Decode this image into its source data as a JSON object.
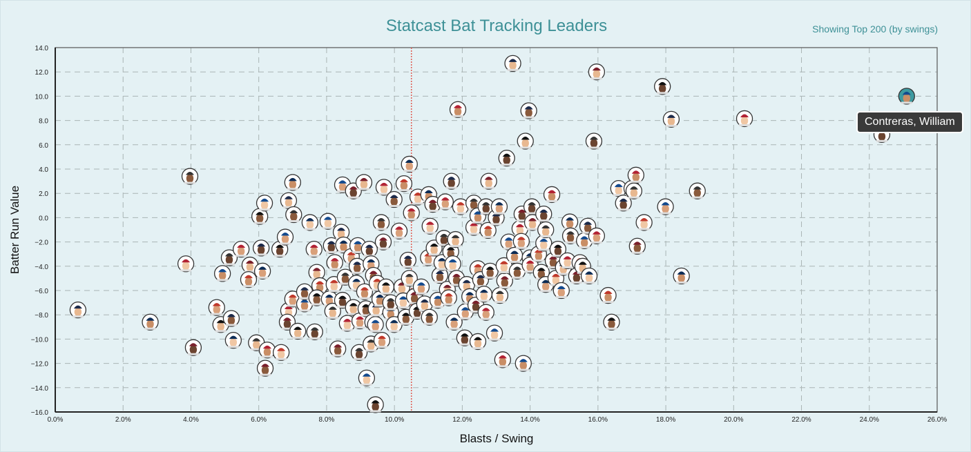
{
  "chart_data": {
    "type": "scatter",
    "title": "Statcast Bat Tracking Leaders",
    "subtitle": "Showing Top 200 (by swings)",
    "xlabel": "Blasts / Swing",
    "ylabel": "Batter Run Value",
    "xlim": [
      0,
      26
    ],
    "ylim": [
      -16,
      14
    ],
    "x_ticks": [
      "0.0%",
      "2.0%",
      "4.0%",
      "6.0%",
      "8.0%",
      "10.0%",
      "12.0%",
      "14.0%",
      "16.0%",
      "18.0%",
      "20.0%",
      "22.0%",
      "24.0%",
      "26.0%"
    ],
    "y_ticks": [
      "−16.0",
      "−14.0",
      "−12.0",
      "−10.0",
      "−8.0",
      "−6.0",
      "−4.0",
      "−2.0",
      "0.0",
      "2.0",
      "4.0",
      "6.0",
      "8.0",
      "10.0",
      "12.0",
      "14.0"
    ],
    "grid": true,
    "reference_line_x": 10.5,
    "highlight": {
      "name": "Contreras, William",
      "x": 25.1,
      "y": 10.0
    },
    "points": [
      [
        0.67,
        -7.6
      ],
      [
        2.8,
        -8.6
      ],
      [
        3.97,
        3.4
      ],
      [
        3.85,
        -3.8
      ],
      [
        4.07,
        -10.7
      ],
      [
        4.76,
        -7.4
      ],
      [
        4.88,
        -8.8
      ],
      [
        4.93,
        -4.6
      ],
      [
        5.19,
        -8.3
      ],
      [
        5.25,
        -10.1
      ],
      [
        5.13,
        -3.3
      ],
      [
        5.48,
        -2.6
      ],
      [
        5.74,
        -3.9
      ],
      [
        5.7,
        -5.1
      ],
      [
        6.03,
        0.1
      ],
      [
        6.17,
        1.2
      ],
      [
        6.07,
        -2.5
      ],
      [
        6.11,
        -4.4
      ],
      [
        5.93,
        -10.3
      ],
      [
        6.25,
        -10.9
      ],
      [
        6.19,
        -12.4
      ],
      [
        6.66,
        -11.1
      ],
      [
        6.62,
        -2.6
      ],
      [
        6.78,
        -1.6
      ],
      [
        6.88,
        1.4
      ],
      [
        7.0,
        2.9
      ],
      [
        7.03,
        0.25
      ],
      [
        6.88,
        -7.65
      ],
      [
        6.84,
        -8.6
      ],
      [
        7.0,
        -6.7
      ],
      [
        7.15,
        -9.35
      ],
      [
        7.35,
        -7.1
      ],
      [
        7.35,
        -6.1
      ],
      [
        7.51,
        -0.4
      ],
      [
        7.65,
        -9.4
      ],
      [
        7.63,
        -2.6
      ],
      [
        7.71,
        -4.5
      ],
      [
        7.8,
        -5.6
      ],
      [
        7.71,
        -6.6
      ],
      [
        8.04,
        -0.3
      ],
      [
        8.14,
        -2.3
      ],
      [
        8.08,
        -6.7
      ],
      [
        8.18,
        -7.7
      ],
      [
        8.24,
        -3.7
      ],
      [
        8.33,
        -10.8
      ],
      [
        8.22,
        -5.5
      ],
      [
        8.47,
        -6.8
      ],
      [
        8.47,
        2.7
      ],
      [
        8.43,
        -1.2
      ],
      [
        8.5,
        -2.25
      ],
      [
        8.55,
        -4.9
      ],
      [
        8.61,
        -8.7
      ],
      [
        8.79,
        2.2
      ],
      [
        8.73,
        -3.2
      ],
      [
        8.79,
        -7.4
      ],
      [
        8.92,
        -2.3
      ],
      [
        8.9,
        -4.0
      ],
      [
        8.88,
        -5.4
      ],
      [
        8.96,
        -11.1
      ],
      [
        8.98,
        -8.5
      ],
      [
        9.1,
        2.9
      ],
      [
        9.12,
        -6.1
      ],
      [
        9.16,
        -7.5
      ],
      [
        9.18,
        -13.2
      ],
      [
        9.26,
        -2.6
      ],
      [
        9.31,
        -3.8
      ],
      [
        9.31,
        -10.4
      ],
      [
        9.36,
        -8.6
      ],
      [
        9.38,
        -4.75
      ],
      [
        9.49,
        -5.4
      ],
      [
        9.44,
        -15.4
      ],
      [
        9.44,
        -8.8
      ],
      [
        9.46,
        -7.5
      ],
      [
        9.57,
        -6.7
      ],
      [
        9.61,
        -0.4
      ],
      [
        9.69,
        2.5
      ],
      [
        9.67,
        -2.0
      ],
      [
        9.63,
        -10.1
      ],
      [
        9.75,
        -5.7
      ],
      [
        9.89,
        -7.8
      ],
      [
        9.99,
        1.5
      ],
      [
        9.99,
        -8.8
      ],
      [
        9.89,
        -7.0
      ],
      [
        10.14,
        -1.1
      ],
      [
        10.22,
        -5.7
      ],
      [
        10.28,
        2.8
      ],
      [
        10.34,
        -8.2
      ],
      [
        10.26,
        -6.85
      ],
      [
        10.4,
        -3.5
      ],
      [
        10.44,
        4.4
      ],
      [
        10.44,
        -5.0
      ],
      [
        10.5,
        0.4
      ],
      [
        10.59,
        -6.5
      ],
      [
        10.69,
        1.7
      ],
      [
        10.67,
        -7.7
      ],
      [
        10.79,
        -5.7
      ],
      [
        10.89,
        -7.1
      ],
      [
        11.01,
        1.9
      ],
      [
        11.03,
        -8.2
      ],
      [
        11.05,
        -0.7
      ],
      [
        11.13,
        1.1
      ],
      [
        11.0,
        -3.3
      ],
      [
        11.17,
        -2.5
      ],
      [
        11.28,
        -6.8
      ],
      [
        11.34,
        -4.75
      ],
      [
        11.4,
        -3.7
      ],
      [
        11.46,
        -1.7
      ],
      [
        11.5,
        1.3
      ],
      [
        11.56,
        -5.9
      ],
      [
        11.6,
        -6.6
      ],
      [
        11.66,
        -2.8
      ],
      [
        11.72,
        -3.8
      ],
      [
        11.68,
        3.0
      ],
      [
        11.76,
        -8.6
      ],
      [
        11.8,
        -1.8
      ],
      [
        11.87,
        8.9
      ],
      [
        11.83,
        -5.0
      ],
      [
        11.95,
        0.9
      ],
      [
        12.07,
        -9.9
      ],
      [
        12.09,
        -7.75
      ],
      [
        12.13,
        -5.5
      ],
      [
        12.22,
        -6.5
      ],
      [
        12.34,
        1.2
      ],
      [
        12.34,
        -0.8
      ],
      [
        12.4,
        -7.2
      ],
      [
        12.46,
        -4.2
      ],
      [
        12.46,
        -10.2
      ],
      [
        12.46,
        0.15
      ],
      [
        12.54,
        -5.1
      ],
      [
        12.64,
        -6.3
      ],
      [
        12.7,
        0.9
      ],
      [
        12.7,
        -7.8
      ],
      [
        12.78,
        3.0
      ],
      [
        12.76,
        -1.05
      ],
      [
        12.82,
        -4.4
      ],
      [
        12.95,
        -9.5
      ],
      [
        13.0,
        0.0
      ],
      [
        13.09,
        0.9
      ],
      [
        13.11,
        -6.4
      ],
      [
        13.19,
        -11.7
      ],
      [
        13.25,
        -5.2
      ],
      [
        13.23,
        -3.95
      ],
      [
        13.31,
        4.9
      ],
      [
        13.37,
        -2.0
      ],
      [
        13.49,
        12.7
      ],
      [
        13.54,
        -3.1
      ],
      [
        13.62,
        -4.4
      ],
      [
        13.7,
        -0.9
      ],
      [
        13.76,
        0.3
      ],
      [
        13.74,
        -1.95
      ],
      [
        13.86,
        6.3
      ],
      [
        13.8,
        -12.0
      ],
      [
        13.96,
        8.8
      ],
      [
        14.0,
        -3.3
      ],
      [
        14.05,
        0.9
      ],
      [
        14.0,
        -3.9
      ],
      [
        14.07,
        -0.4
      ],
      [
        14.25,
        -3.0
      ],
      [
        14.33,
        -4.5
      ],
      [
        14.4,
        -2.1
      ],
      [
        14.4,
        0.3
      ],
      [
        14.46,
        -5.5
      ],
      [
        14.46,
        -1.0
      ],
      [
        14.64,
        1.9
      ],
      [
        14.68,
        -3.55
      ],
      [
        14.76,
        -5.0
      ],
      [
        14.82,
        -2.6
      ],
      [
        14.92,
        -6.0
      ],
      [
        14.98,
        -4.1
      ],
      [
        15.17,
        -0.35
      ],
      [
        15.19,
        -1.5
      ],
      [
        15.1,
        -3.55
      ],
      [
        15.37,
        -4.8
      ],
      [
        15.47,
        -3.7
      ],
      [
        15.55,
        -4.0
      ],
      [
        15.6,
        -1.9
      ],
      [
        15.7,
        -0.7
      ],
      [
        15.74,
        -4.8
      ],
      [
        15.88,
        6.3
      ],
      [
        15.96,
        -1.5
      ],
      [
        15.96,
        12.0
      ],
      [
        16.3,
        -6.4
      ],
      [
        16.4,
        -8.6
      ],
      [
        16.61,
        2.4
      ],
      [
        16.75,
        1.2
      ],
      [
        17.0,
        2.4
      ],
      [
        17.06,
        2.2
      ],
      [
        17.12,
        3.5
      ],
      [
        17.16,
        -2.35
      ],
      [
        17.36,
        -0.4
      ],
      [
        17.9,
        10.8
      ],
      [
        17.99,
        0.9
      ],
      [
        18.16,
        8.1
      ],
      [
        18.46,
        -4.8
      ],
      [
        18.93,
        2.2
      ],
      [
        20.32,
        8.15
      ],
      [
        24.37,
        6.85
      ]
    ]
  },
  "colors": {
    "title": "#3d9096",
    "reference_line": "#e05a4f",
    "highlight_bg": "#3d9aa0",
    "tooltip_bg": "#3a3a3a"
  }
}
